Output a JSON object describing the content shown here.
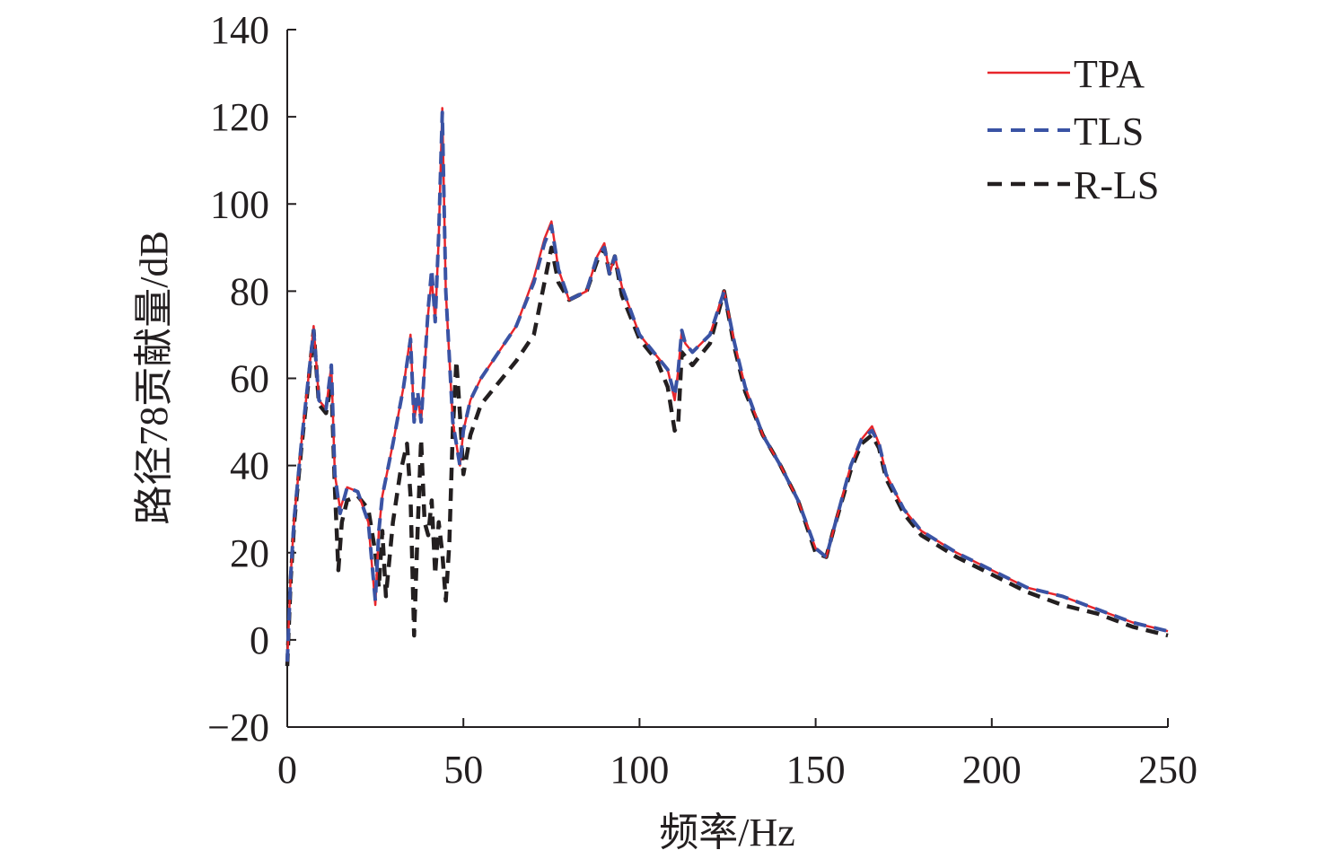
{
  "chart_data": {
    "type": "line",
    "xlabel": "频率/Hz",
    "ylabel": "路径78贡献量/dB",
    "xlim": [
      0,
      250
    ],
    "ylim": [
      -20,
      140
    ],
    "x_ticks": [
      0,
      50,
      100,
      150,
      200,
      250
    ],
    "y_ticks": [
      -20,
      0,
      20,
      40,
      60,
      80,
      100,
      120,
      140
    ],
    "x_tick_labels": [
      "0",
      "50",
      "100",
      "150",
      "200",
      "250"
    ],
    "y_tick_labels": [
      "−20",
      "0",
      "20",
      "40",
      "60",
      "80",
      "100",
      "120",
      "140"
    ],
    "grid": false,
    "legend_position": "top-right",
    "series": [
      {
        "name": "TPA",
        "color": "#e8262b",
        "style": "solid",
        "x": [
          0,
          1,
          2,
          4,
          6,
          7.5,
          9,
          11,
          12.5,
          13.5,
          15,
          17,
          20,
          23,
          25,
          26,
          27,
          30,
          33,
          35,
          36,
          37,
          38,
          40,
          41,
          42,
          43,
          44,
          45,
          47,
          49,
          50,
          52,
          55,
          60,
          65,
          70,
          73,
          75,
          77,
          80,
          85,
          88,
          90,
          91.5,
          93,
          95,
          100,
          105,
          108,
          110,
          111,
          112,
          113,
          115,
          120,
          124,
          127,
          130,
          135,
          140,
          145,
          150,
          153,
          155,
          160,
          163,
          166,
          168,
          170,
          175,
          180,
          190,
          200,
          210,
          220,
          230,
          240,
          250
        ],
        "y": [
          -5,
          15,
          28,
          45,
          60,
          72,
          55,
          53,
          63,
          38,
          30,
          35,
          34,
          27,
          8,
          25,
          33,
          45,
          58,
          70,
          50,
          56,
          50,
          75,
          83,
          73,
          92,
          122,
          80,
          50,
          40,
          48,
          55,
          60,
          66,
          72,
          83,
          92,
          96,
          85,
          78,
          80,
          88,
          91,
          84,
          88,
          81,
          70,
          65,
          62,
          55,
          62,
          71,
          68,
          66,
          70,
          80,
          68,
          58,
          47,
          40,
          32,
          21,
          19,
          25,
          40,
          46,
          49,
          45,
          38,
          30,
          25,
          20,
          16,
          12,
          10,
          7,
          4,
          2
        ]
      },
      {
        "name": "TLS",
        "color": "#3a53a4",
        "style": "dashed",
        "x": [
          0,
          1,
          2,
          4,
          6,
          7.5,
          9,
          11,
          12.5,
          13.5,
          15,
          17,
          20,
          23,
          25,
          26,
          27,
          30,
          33,
          35,
          36,
          37,
          38,
          40,
          41,
          42,
          43,
          44,
          45,
          47,
          49,
          50,
          52,
          55,
          60,
          65,
          70,
          73,
          75,
          77,
          80,
          85,
          88,
          90,
          91.5,
          93,
          95,
          100,
          105,
          108,
          110,
          111,
          112,
          113,
          115,
          120,
          124,
          127,
          130,
          135,
          140,
          145,
          150,
          153,
          155,
          160,
          163,
          166,
          168,
          170,
          175,
          180,
          190,
          200,
          210,
          220,
          230,
          240,
          250
        ],
        "y": [
          -5,
          15,
          28,
          45,
          60,
          71,
          55,
          53,
          63,
          38,
          29,
          35,
          34,
          27,
          9,
          25,
          33,
          45,
          58,
          69,
          50,
          57,
          50,
          76,
          85,
          73,
          93,
          121,
          80,
          50,
          40,
          48,
          55,
          60,
          66,
          72,
          82,
          91,
          95,
          85,
          78,
          80,
          88,
          90,
          84,
          88,
          81,
          70,
          65,
          62,
          56,
          62,
          71,
          68,
          66,
          70,
          80,
          68,
          58,
          47,
          40,
          32,
          21,
          19,
          25,
          40,
          46,
          48,
          45,
          38,
          30,
          25,
          20,
          16,
          12,
          10,
          7,
          4,
          2
        ]
      },
      {
        "name": "R-LS",
        "color": "#231f20",
        "style": "dashed",
        "x": [
          0,
          1,
          2,
          4,
          6,
          7.5,
          9,
          11,
          12.5,
          13.5,
          14.5,
          15.5,
          17,
          20,
          23,
          25,
          26,
          27,
          28,
          30,
          32,
          34,
          35,
          36,
          37,
          38,
          39,
          40,
          41,
          42,
          43,
          44,
          45,
          46,
          47,
          48,
          49,
          50,
          52,
          55,
          60,
          65,
          70,
          73,
          75,
          77,
          80,
          85,
          88,
          90,
          91.5,
          93,
          95,
          100,
          105,
          108,
          110,
          111,
          112,
          113,
          115,
          120,
          124,
          127,
          130,
          135,
          140,
          145,
          150,
          153,
          155,
          160,
          163,
          166,
          168,
          170,
          175,
          180,
          190,
          200,
          210,
          220,
          230,
          240,
          250
        ],
        "y": [
          -6,
          14,
          27,
          44,
          59,
          71,
          54,
          52,
          59,
          35,
          16,
          27,
          32,
          33,
          30,
          20,
          12,
          25,
          10,
          27,
          38,
          45,
          33,
          1,
          25,
          46,
          27,
          24,
          32,
          15,
          27,
          20,
          9,
          22,
          48,
          64,
          52,
          38,
          47,
          54,
          59,
          64,
          70,
          82,
          90,
          82,
          78,
          80,
          87,
          90,
          84,
          88,
          79,
          69,
          64,
          58,
          48,
          50,
          66,
          65,
          63,
          68,
          80,
          67,
          57,
          47,
          40,
          32,
          20,
          19,
          25,
          39,
          45,
          47,
          44,
          37,
          29,
          24,
          19,
          15,
          11,
          8,
          6,
          3,
          1
        ]
      }
    ]
  }
}
